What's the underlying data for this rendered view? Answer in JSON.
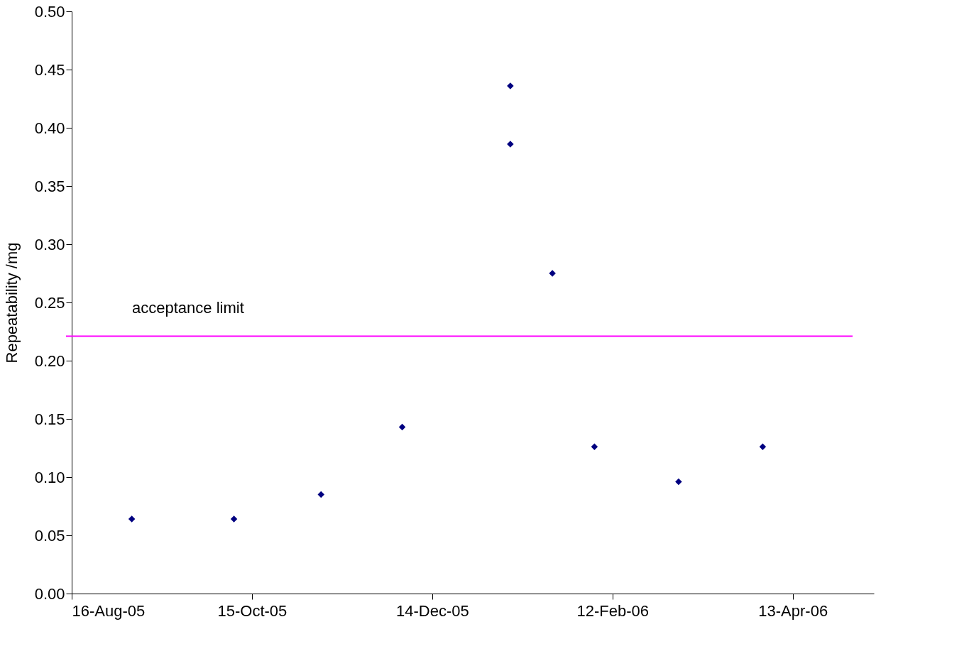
{
  "chart_data": {
    "type": "scatter",
    "ylabel": "Repeatability /mg",
    "x": [
      "2005-09-05",
      "2005-10-09",
      "2005-11-07",
      "2005-12-04",
      "2006-01-09",
      "2006-01-09",
      "2006-01-23",
      "2006-02-06",
      "2006-03-06",
      "2006-04-03"
    ],
    "series": [
      {
        "color": "#000080",
        "values": [
          0.064,
          0.064,
          0.085,
          0.143,
          0.436,
          0.386,
          0.275,
          0.126,
          0.096,
          0.126
        ]
      }
    ],
    "marker": "diamond",
    "grid": false,
    "xlim": [
      "2005-08-16",
      "2006-05-10"
    ],
    "xticks": [
      {
        "value": "2005-08-16",
        "label": "16-Aug-05"
      },
      {
        "value": "2005-10-15",
        "label": "15-Oct-05"
      },
      {
        "value": "2005-12-14",
        "label": "14-Dec-05"
      },
      {
        "value": "2006-02-12",
        "label": "12-Feb-06"
      },
      {
        "value": "2006-04-13",
        "label": "13-Apr-06"
      }
    ],
    "ylim": [
      0,
      0.5
    ],
    "yticks": [
      {
        "value": 0,
        "label": "0.00"
      },
      {
        "value": 0.05,
        "label": "0.05"
      },
      {
        "value": 0.1,
        "label": "0.10"
      },
      {
        "value": 0.15,
        "label": "0.15"
      },
      {
        "value": 0.2,
        "label": "0.20"
      },
      {
        "value": 0.25,
        "label": "0.25"
      },
      {
        "value": 0.3,
        "label": "0.30"
      },
      {
        "value": 0.35,
        "label": "0.35"
      },
      {
        "value": 0.4,
        "label": "0.40"
      },
      {
        "value": 0.45,
        "label": "0.45"
      },
      {
        "value": 0.5,
        "label": "0.50"
      }
    ],
    "ref_lines": [
      {
        "axis": "y",
        "value": 0.221,
        "label": "acceptance limit",
        "color": "#ff00ff"
      }
    ]
  }
}
